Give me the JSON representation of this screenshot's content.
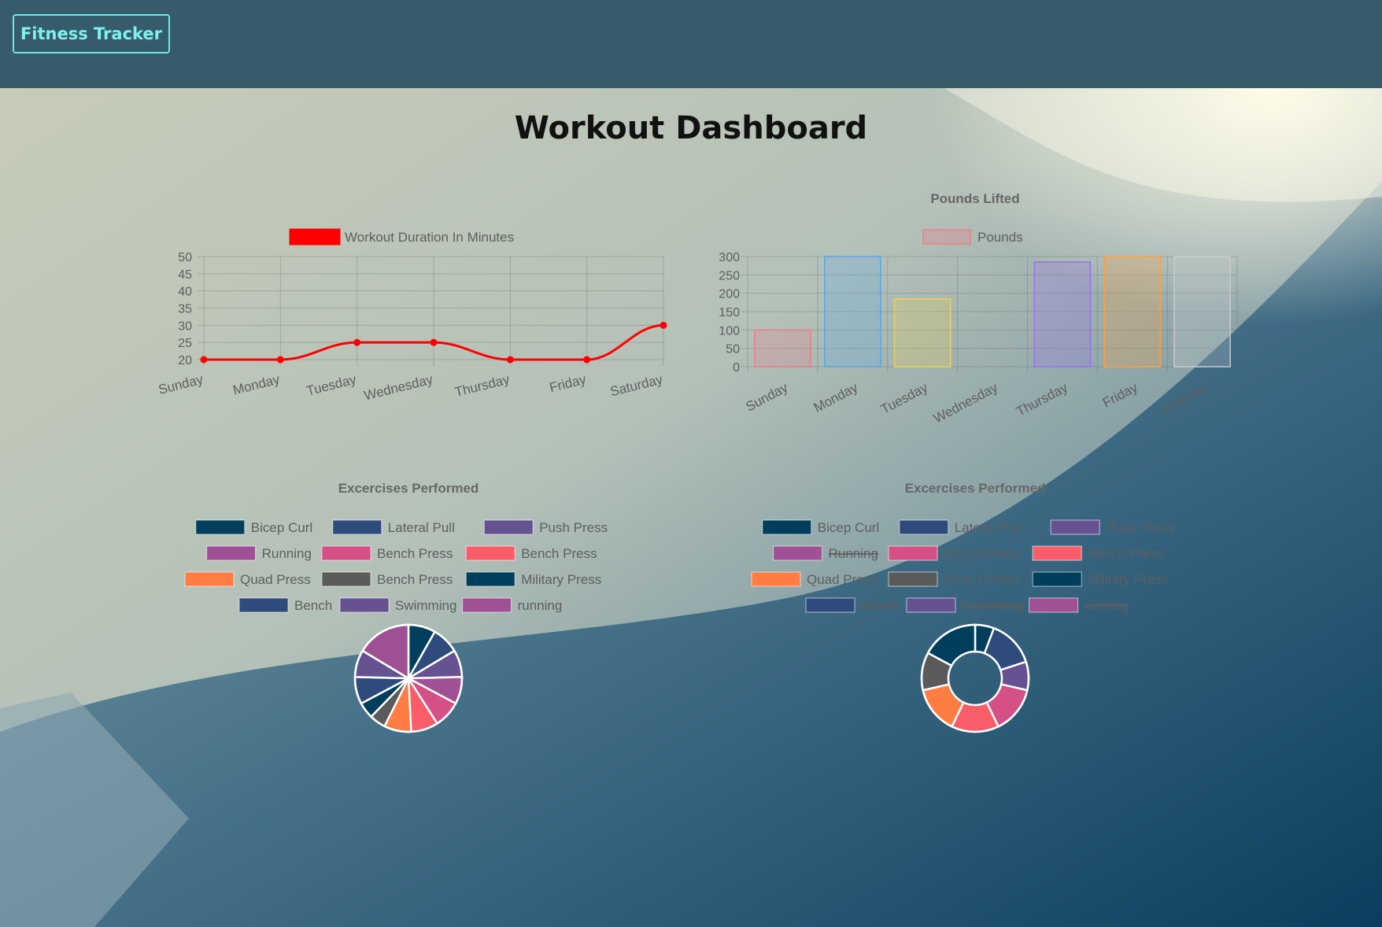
{
  "navbar": {
    "brand_label": "Fitness Tracker"
  },
  "page": {
    "title": "Workout Dashboard"
  },
  "chart_data": [
    {
      "type": "line",
      "title": "",
      "legend": [
        "Workout Duration In Minutes"
      ],
      "legend_placement": "top",
      "categories": [
        "Sunday",
        "Monday",
        "Tuesday",
        "Wednesday",
        "Thursday",
        "Friday",
        "Saturday"
      ],
      "series": [
        {
          "name": "Workout Duration In Minutes",
          "values": [
            20,
            20,
            25,
            25,
            20,
            20,
            30
          ],
          "color": "#ff0000"
        }
      ],
      "ylim": [
        20,
        50
      ],
      "yticks": [
        20,
        25,
        30,
        35,
        40,
        45,
        50
      ],
      "grid": true
    },
    {
      "type": "bar",
      "title": "Pounds Lifted",
      "legend": [
        "Pounds"
      ],
      "legend_placement": "top",
      "categories": [
        "Sunday",
        "Monday",
        "Tuesday",
        "Wednesday",
        "Thursday",
        "Friday",
        "Saturday"
      ],
      "series": [
        {
          "name": "Pounds",
          "values": [
            100,
            300,
            185,
            0,
            285,
            300,
            300
          ]
        }
      ],
      "bar_colors": [
        "#f07a8a",
        "#5aa6e6",
        "#f0cf52",
        "#4fc0c0",
        "#9a70f0",
        "#ff9f40",
        "#c9cbcf"
      ],
      "ylim": [
        0,
        300
      ],
      "yticks": [
        0,
        50,
        100,
        150,
        200,
        250,
        300
      ],
      "grid": true
    },
    {
      "type": "pie",
      "title": "Excercises Performed",
      "legend_placement": "top",
      "labels": [
        "Bicep Curl",
        "Lateral Pull",
        "Push Press",
        "Running",
        "Bench Press",
        "Bench Press",
        "Quad Press",
        "Bench Press",
        "Military Press",
        "Bench",
        "Swimming",
        "running"
      ],
      "colors": [
        "#003f5c",
        "#2f4b7c",
        "#665191",
        "#a05195",
        "#d45087",
        "#f95d6a",
        "#ff7c43",
        "#5a5a5a",
        "#003f5c",
        "#2f4b7c",
        "#665191",
        "#a05195"
      ],
      "values": [
        5,
        5,
        5,
        5,
        5,
        5,
        5,
        3,
        3,
        5,
        5,
        10
      ],
      "hidden": []
    },
    {
      "type": "doughnut",
      "title": "Excercises Performed",
      "legend_placement": "top",
      "labels": [
        "Bicep Curl",
        "Lateral Pull",
        "Push Press",
        "Running",
        "Bench Press",
        "Bench Press",
        "Quad Press",
        "Bench Press",
        "Military Press",
        "Bench",
        "Swimming",
        "running"
      ],
      "colors": [
        "#003f5c",
        "#2f4b7c",
        "#665191",
        "#a05195",
        "#d45087",
        "#f95d6a",
        "#ff7c43",
        "#5a5a5a",
        "#003f5c",
        "#2f4b7c",
        "#665191",
        "#a05195"
      ],
      "values": [
        2,
        5,
        3,
        0,
        5,
        5,
        5,
        4,
        6,
        0,
        0,
        0
      ],
      "hidden": [
        3,
        9,
        10,
        11
      ]
    }
  ]
}
